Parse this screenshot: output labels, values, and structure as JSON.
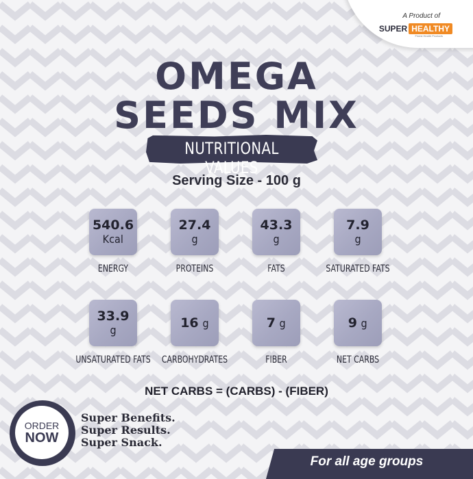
{
  "brand": {
    "prefix": "A Product of",
    "name_part1": "SUPER",
    "name_part2": "HEALTHY",
    "tagline": "Finest Health Products"
  },
  "title": {
    "line1": "OMEGA",
    "line2": "SEEDS MIX"
  },
  "banner": "NUTRITIONAL VALUES",
  "serving": "Serving Size - 100 g",
  "nutrients": [
    {
      "value": "540.6",
      "unit": "Kcal",
      "label": "ENERGY"
    },
    {
      "value": "27.4",
      "unit": "g",
      "label": "PROTEINS"
    },
    {
      "value": "43.3",
      "unit": "g",
      "label": "FATS"
    },
    {
      "value": "7.9",
      "unit": "g",
      "label": "SATURATED FATS"
    },
    {
      "value": "33.9",
      "unit": "g",
      "label": "UNSATURATED FATS"
    },
    {
      "value": "16",
      "unit": "g",
      "label": "CARBOHYDRATES"
    },
    {
      "value": "7",
      "unit": "g",
      "label": "FIBER"
    },
    {
      "value": "9",
      "unit": "g",
      "label": "NET CARBS"
    }
  ],
  "formula": "NET CARBS = (CARBS) - (FIBER)",
  "order": {
    "line1": "ORDER",
    "line2": "NOW"
  },
  "taglines": [
    "Super Benefits.",
    "Super Results.",
    "Super Snack."
  ],
  "age_banner": "For all age groups",
  "colors": {
    "accent": "#3a3a52",
    "brand_orange": "#f08a24",
    "tile": "#a7a8c2"
  }
}
